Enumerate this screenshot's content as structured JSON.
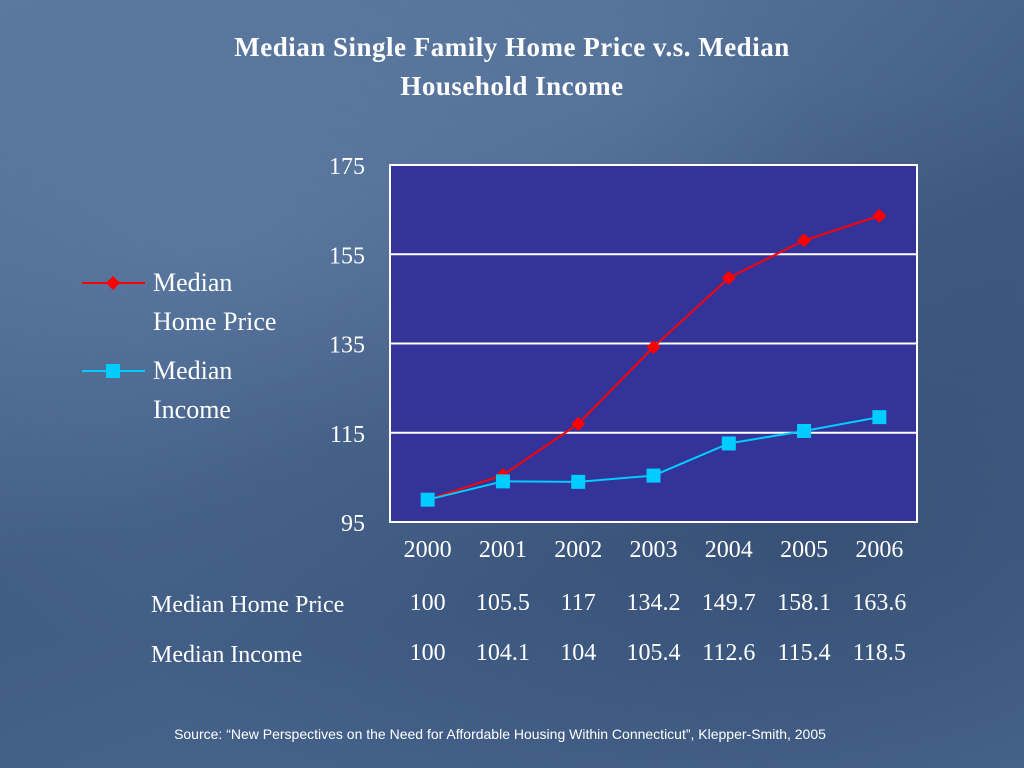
{
  "title_lines": [
    "Median Single Family Home Price v.s. Median",
    "Household Income"
  ],
  "source": "Source:  “New Perspectives on the Need for Affordable Housing Within Connecticut”, Klepper-Smith, 2005",
  "colors": {
    "plot_bg": "#333399",
    "grid": "#ffffff",
    "home_price": "#ff0000",
    "income": "#00ccff"
  },
  "chart_data": {
    "type": "line",
    "title": "Median Single Family Home Price v.s. Median Household Income",
    "categories": [
      "2000",
      "2001",
      "2002",
      "2003",
      "2004",
      "2005",
      "2006"
    ],
    "ylim": [
      95,
      175
    ],
    "yticks": [
      "175",
      "155",
      "135",
      "115",
      "95"
    ],
    "grid": true,
    "legend": "left",
    "series": [
      {
        "name": "Median Home Price",
        "legend_lines": [
          "Median",
          "Home Price"
        ],
        "marker": "diamond",
        "values": [
          100,
          105.5,
          117,
          134.2,
          149.7,
          158.1,
          163.6
        ],
        "labels": [
          "100",
          "105.5",
          "117",
          "134.2",
          "149.7",
          "158.1",
          "163.6"
        ]
      },
      {
        "name": "Median Income",
        "legend_lines": [
          "Median",
          "Income"
        ],
        "marker": "square",
        "values": [
          100,
          104.1,
          104,
          105.4,
          112.6,
          115.4,
          118.5
        ],
        "labels": [
          "100",
          "104.1",
          "104",
          "105.4",
          "112.6",
          "115.4",
          "118.5"
        ]
      }
    ]
  }
}
